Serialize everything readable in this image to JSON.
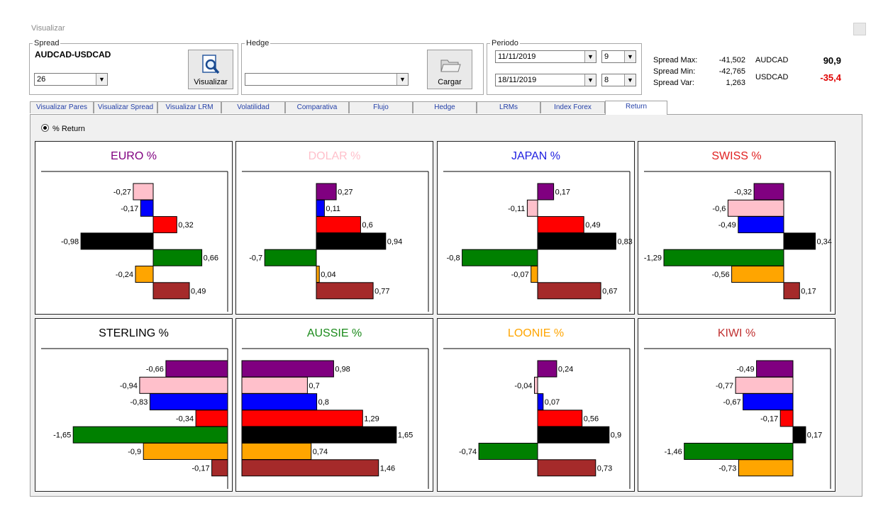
{
  "window": {
    "title": "Visualizar"
  },
  "spread": {
    "legend": "Spread",
    "pair": "AUDCAD-USDCAD",
    "period_value": "26",
    "button_label": "Visualizar"
  },
  "hedge": {
    "legend": "Hedge",
    "value": "",
    "button_label": "Cargar"
  },
  "periodo": {
    "legend": "Periodo",
    "date_from": "11/11/2019",
    "hour_from": "9",
    "date_to": "18/11/2019",
    "hour_to": "8"
  },
  "stats": {
    "spread_max_label": "Spread Max:",
    "spread_max_value": "-41,502",
    "spread_min_label": "Spread Min:",
    "spread_min_value": "-42,765",
    "spread_var_label": "Spread Var:",
    "spread_var_value": "1,263",
    "pair1_name": "AUDCAD",
    "pair1_value": "90,9",
    "pair1_color": "#000000",
    "pair2_name": "USDCAD",
    "pair2_value": "-35,4",
    "pair2_color": "#e00000"
  },
  "tabs": [
    "Visualizar Pares",
    "Visualizar Spread",
    "Visualizar LRM",
    "Volatilidad",
    "Comparativa",
    "Flujo",
    "Hedge",
    "LRMs",
    "Index Forex",
    "Return"
  ],
  "active_tab": "Return",
  "radio": {
    "label": "% Return",
    "checked": true
  },
  "series_colors": [
    "#800080",
    "#ffc0cb",
    "#0000ff",
    "#ff0000",
    "#000000",
    "#008000",
    "#ffa500",
    "#a52a2a"
  ],
  "chart_data": [
    {
      "type": "bar",
      "title": "EURO %",
      "title_color": "#800080",
      "values": [
        -0.27,
        -0.17,
        0.32,
        -0.98,
        0.66,
        -0.24,
        0.49
      ],
      "labels": [
        "-0,27",
        "-0,17",
        "0,32",
        "-0,98",
        "0,66",
        "-0,24",
        "0,49"
      ],
      "colors": [
        "#ffc0cb",
        "#0000ff",
        "#ff0000",
        "#000000",
        "#008000",
        "#ffa500",
        "#a52a2a"
      ]
    },
    {
      "type": "bar",
      "title": "DOLAR %",
      "title_color": "#ffc0cb",
      "values": [
        0.27,
        0.11,
        0.6,
        0.94,
        -0.7,
        0.04,
        0.77
      ],
      "labels": [
        "0,27",
        "0,11",
        "0,6",
        "0,94",
        "-0,7",
        "0,04",
        "0,77"
      ],
      "colors": [
        "#800080",
        "#0000ff",
        "#ff0000",
        "#000000",
        "#008000",
        "#ffa500",
        "#a52a2a"
      ]
    },
    {
      "type": "bar",
      "title": "JAPAN %",
      "title_color": "#2020e0",
      "values": [
        0.17,
        -0.11,
        0.49,
        0.83,
        -0.8,
        -0.07,
        0.67
      ],
      "labels": [
        "0,17",
        "-0,11",
        "0,49",
        "0,83",
        "-0,8",
        "-0,07",
        "0,67"
      ],
      "colors": [
        "#800080",
        "#ffc0cb",
        "#ff0000",
        "#000000",
        "#008000",
        "#ffa500",
        "#a52a2a"
      ]
    },
    {
      "type": "bar",
      "title": "SWISS %",
      "title_color": "#e02020",
      "values": [
        -0.32,
        -0.6,
        -0.49,
        0.34,
        -1.29,
        -0.56,
        0.17
      ],
      "labels": [
        "-0,32",
        "-0,6",
        "-0,49",
        "0,34",
        "-1,29",
        "-0,56",
        "0,17"
      ],
      "colors": [
        "#800080",
        "#ffc0cb",
        "#0000ff",
        "#000000",
        "#008000",
        "#ffa500",
        "#a52a2a"
      ]
    },
    {
      "type": "bar",
      "title": "STERLING %",
      "title_color": "#000000",
      "values": [
        -0.66,
        -0.94,
        -0.83,
        -0.34,
        -1.65,
        -0.9,
        -0.17
      ],
      "labels": [
        "-0,66",
        "-0,94",
        "-0,83",
        "-0,34",
        "-1,65",
        "-0,9",
        "-0,17"
      ],
      "colors": [
        "#800080",
        "#ffc0cb",
        "#0000ff",
        "#ff0000",
        "#008000",
        "#ffa500",
        "#a52a2a"
      ]
    },
    {
      "type": "bar",
      "title": "AUSSIE %",
      "title_color": "#1a8a1a",
      "values": [
        0.98,
        0.7,
        0.8,
        1.29,
        1.65,
        0.74,
        1.46
      ],
      "labels": [
        "0,98",
        "0,7",
        "0,8",
        "1,29",
        "1,65",
        "0,74",
        "1,46"
      ],
      "colors": [
        "#800080",
        "#ffc0cb",
        "#0000ff",
        "#ff0000",
        "#000000",
        "#ffa500",
        "#a52a2a"
      ]
    },
    {
      "type": "bar",
      "title": "LOONIE %",
      "title_color": "#ffa500",
      "values": [
        0.24,
        -0.04,
        0.07,
        0.56,
        0.9,
        -0.74,
        0.73
      ],
      "labels": [
        "0,24",
        "-0,04",
        "0,07",
        "0,56",
        "0,9",
        "-0,74",
        "0,73"
      ],
      "colors": [
        "#800080",
        "#ffc0cb",
        "#0000ff",
        "#ff0000",
        "#000000",
        "#008000",
        "#a52a2a"
      ]
    },
    {
      "type": "bar",
      "title": "KIWI %",
      "title_color": "#c03030",
      "values": [
        -0.49,
        -0.77,
        -0.67,
        -0.17,
        0.17,
        -1.46,
        -0.73
      ],
      "labels": [
        "-0,49",
        "-0,77",
        "-0,67",
        "-0,17",
        "0,17",
        "-1,46",
        "-0,73"
      ],
      "colors": [
        "#800080",
        "#ffc0cb",
        "#0000ff",
        "#ff0000",
        "#000000",
        "#008000",
        "#ffa500"
      ]
    }
  ]
}
